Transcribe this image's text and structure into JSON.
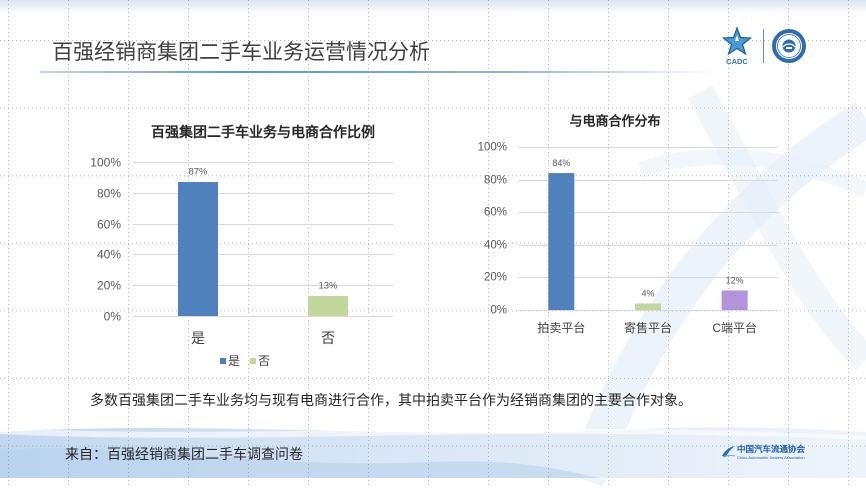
{
  "slide": {
    "title": "百强经销商集团二手车业务运营情况分析",
    "summary": "多数百强集团二手车业务均与现有电商进行合作，其中拍卖平台作为经销商集团的主要合作对象。",
    "source": "来自：百强经销商集团二手车调查问卷"
  },
  "logos": {
    "header_emblem_text": "CADC",
    "footer_org_cn": "中国汽车流通协会",
    "footer_org_en": "China Automobile Dealers Association",
    "icons": [
      "cadc-star-logo-icon",
      "association-seal-icon",
      "association-swoosh-icon"
    ]
  },
  "colors": {
    "title_text": "#404040",
    "accent_blue": "#2E75B6",
    "title_rule": "#5F95CF",
    "footer_band": "#CFE0F2"
  },
  "chart_data": [
    {
      "type": "bar",
      "title": "百强集团二手车业务与电商合作比例",
      "categories": [
        "是",
        "否"
      ],
      "values": [
        87,
        13
      ],
      "data_labels": [
        "87%",
        "13%"
      ],
      "colors": [
        "#4F81BD",
        "#C3D69B"
      ],
      "ylim": [
        0,
        100
      ],
      "ytick_values": [
        0,
        20,
        40,
        60,
        80,
        100
      ],
      "ytick_labels": [
        "0%",
        "20%",
        "40%",
        "60%",
        "80%",
        "100%"
      ],
      "grid": true,
      "legend": [
        "是",
        "否"
      ],
      "legend_position": "bottom"
    },
    {
      "type": "bar",
      "title": "与电商合作分布",
      "categories": [
        "拍卖平台",
        "寄售平台",
        "C端平台"
      ],
      "values": [
        84,
        4,
        12
      ],
      "data_labels": [
        "84%",
        "4%",
        "12%"
      ],
      "colors": [
        "#4F81BD",
        "#C3D69B",
        "#B394DB"
      ],
      "ylim": [
        0,
        100
      ],
      "ytick_values": [
        0,
        20,
        40,
        60,
        80,
        100
      ],
      "ytick_labels": [
        "0%",
        "20%",
        "40%",
        "60%",
        "80%",
        "100%"
      ],
      "grid": true,
      "legend": []
    }
  ]
}
